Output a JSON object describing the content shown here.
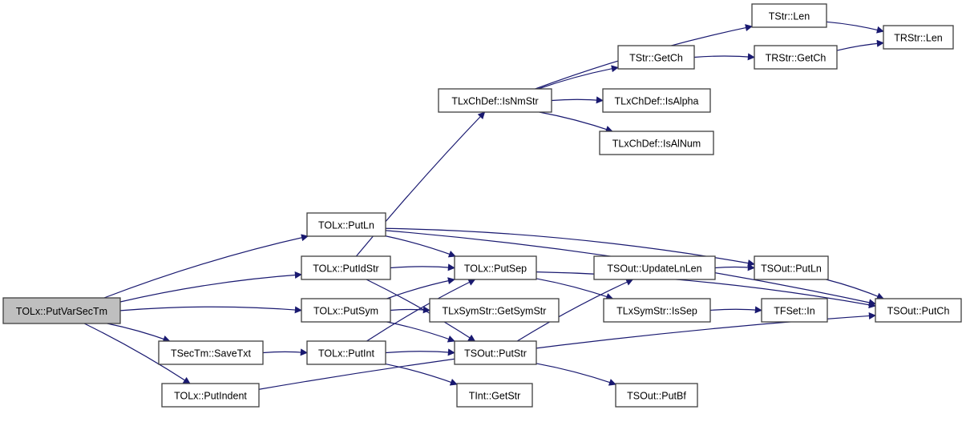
{
  "colors": {
    "edge": "#191970",
    "root_fill": "#bfbfbf",
    "node_fill": "#ffffff",
    "node_border": "#3f3f3f"
  },
  "nodes": [
    {
      "id": "putvarsectm",
      "label": "TOLx::PutVarSecTm",
      "root": true
    },
    {
      "id": "putln",
      "label": "TOLx::PutLn"
    },
    {
      "id": "putidstr",
      "label": "TOLx::PutIdStr"
    },
    {
      "id": "putsym",
      "label": "TOLx::PutSym"
    },
    {
      "id": "savetxt",
      "label": "TSecTm::SaveTxt"
    },
    {
      "id": "putint",
      "label": "TOLx::PutInt"
    },
    {
      "id": "putindent",
      "label": "TOLx::PutIndent"
    },
    {
      "id": "isnmstr",
      "label": "TLxChDef::IsNmStr"
    },
    {
      "id": "tstrlen",
      "label": "TStr::Len"
    },
    {
      "id": "trstrlen",
      "label": "TRStr::Len"
    },
    {
      "id": "tstrgetch",
      "label": "TStr::GetCh"
    },
    {
      "id": "trstrgetch",
      "label": "TRStr::GetCh"
    },
    {
      "id": "isalpha",
      "label": "TLxChDef::IsAlpha"
    },
    {
      "id": "isalnum",
      "label": "TLxChDef::IsAlNum"
    },
    {
      "id": "putsep",
      "label": "TOLx::PutSep"
    },
    {
      "id": "getsymstr",
      "label": "TLxSymStr::GetSymStr"
    },
    {
      "id": "soutputstr",
      "label": "TSOut::PutStr"
    },
    {
      "id": "tintgetstr",
      "label": "TInt::GetStr"
    },
    {
      "id": "updatelnlen",
      "label": "TSOut::UpdateLnLen"
    },
    {
      "id": "soutputln",
      "label": "TSOut::PutLn"
    },
    {
      "id": "issep",
      "label": "TLxSymStr::IsSep"
    },
    {
      "id": "tfsetin",
      "label": "TFSet::In"
    },
    {
      "id": "soutputch",
      "label": "TSOut::PutCh"
    },
    {
      "id": "soutputbf",
      "label": "TSOut::PutBf"
    }
  ],
  "edges": [
    [
      "putvarsectm",
      "putln"
    ],
    [
      "putvarsectm",
      "putidstr"
    ],
    [
      "putvarsectm",
      "putsym"
    ],
    [
      "putvarsectm",
      "savetxt"
    ],
    [
      "putvarsectm",
      "putindent"
    ],
    [
      "putln",
      "putsep"
    ],
    [
      "putln",
      "soutputln"
    ],
    [
      "putln",
      "soutputch"
    ],
    [
      "putidstr",
      "isnmstr"
    ],
    [
      "putidstr",
      "putsep"
    ],
    [
      "putidstr",
      "soutputstr"
    ],
    [
      "putsym",
      "putsep"
    ],
    [
      "putsym",
      "getsymstr"
    ],
    [
      "putsym",
      "soutputstr"
    ],
    [
      "savetxt",
      "putint"
    ],
    [
      "putint",
      "putsep"
    ],
    [
      "putint",
      "soutputstr"
    ],
    [
      "putint",
      "tintgetstr"
    ],
    [
      "putindent",
      "soutputch"
    ],
    [
      "isnmstr",
      "tstrlen"
    ],
    [
      "isnmstr",
      "tstrgetch"
    ],
    [
      "isnmstr",
      "isalpha"
    ],
    [
      "isnmstr",
      "isalnum"
    ],
    [
      "tstrlen",
      "trstrlen"
    ],
    [
      "tstrgetch",
      "trstrgetch"
    ],
    [
      "trstrgetch",
      "trstrlen"
    ],
    [
      "putsep",
      "issep"
    ],
    [
      "putsep",
      "soutputch"
    ],
    [
      "soutputstr",
      "updatelnlen"
    ],
    [
      "soutputstr",
      "soutputbf"
    ],
    [
      "updatelnlen",
      "soutputln"
    ],
    [
      "soutputln",
      "soutputch"
    ],
    [
      "issep",
      "tfsetin"
    ]
  ]
}
